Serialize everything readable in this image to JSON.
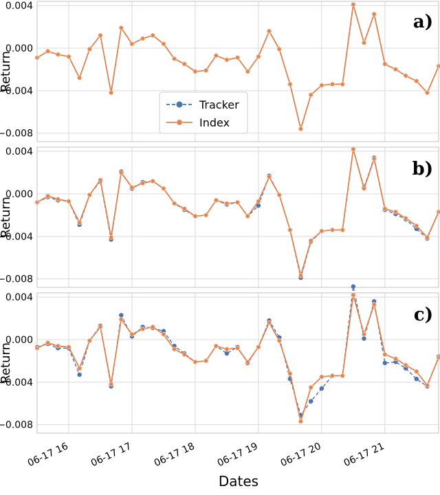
{
  "chart_data": {
    "type": "line",
    "xlabel": "Dates",
    "x_tick_labels": [
      "06-17 16",
      "06-17 17",
      "06-17 18",
      "06-17 19",
      "06-17 20",
      "06-17 21"
    ],
    "x_tick_hours": [
      16,
      17,
      18,
      19,
      20,
      21
    ],
    "xlim": [
      15.5,
      21.85
    ],
    "x": [
      15.5,
      15.67,
      15.83,
      16.0,
      16.17,
      16.33,
      16.5,
      16.67,
      16.83,
      17.0,
      17.17,
      17.33,
      17.5,
      17.67,
      17.83,
      18.0,
      18.17,
      18.33,
      18.5,
      18.67,
      18.83,
      19.0,
      19.17,
      19.33,
      19.5,
      19.67,
      19.83,
      20.0,
      20.17,
      20.33,
      20.5,
      20.67,
      20.83,
      21.0,
      21.17,
      21.33,
      21.5,
      21.67,
      21.85
    ],
    "y_ticks": [
      0.004,
      0.0,
      -0.004,
      -0.008
    ],
    "y_tick_labels": [
      "0.004",
      "0.000",
      "−0.004",
      "−0.008"
    ],
    "ylim": [
      -0.0088,
      0.0044
    ],
    "grid": true,
    "legend": {
      "position": "center-left",
      "entries": [
        "Tracker",
        "Index"
      ]
    },
    "colors": {
      "tracker": "#4c72b0",
      "index": "#dd8452",
      "grid": "#d9d9d9",
      "frame": "#c0c0c0"
    },
    "panels": [
      {
        "tag": "a)",
        "ylabel": "Return",
        "series": [
          {
            "name": "Tracker",
            "values": [
              -0.0009,
              -0.0003,
              -0.0006,
              -0.0008,
              -0.0028,
              -0.0001,
              0.0012,
              -0.0042,
              0.0019,
              0.0004,
              0.0009,
              0.0012,
              0.0004,
              -0.001,
              -0.0015,
              -0.0022,
              -0.0021,
              -0.0007,
              -0.0011,
              -0.0009,
              -0.0022,
              -0.0008,
              0.0016,
              -0.0001,
              -0.0034,
              -0.0076,
              -0.0044,
              -0.0035,
              -0.0034,
              -0.0034,
              0.0041,
              0.0005,
              0.0032,
              -0.0015,
              -0.002,
              -0.0026,
              -0.0031,
              -0.0042,
              -0.0017
            ]
          },
          {
            "name": "Index",
            "values": [
              -0.0009,
              -0.0003,
              -0.0006,
              -0.0008,
              -0.0028,
              -0.0001,
              0.0012,
              -0.0042,
              0.0019,
              0.0004,
              0.0009,
              0.0012,
              0.0004,
              -0.001,
              -0.0015,
              -0.0022,
              -0.0021,
              -0.0007,
              -0.0011,
              -0.0009,
              -0.0022,
              -0.0008,
              0.0016,
              -0.0001,
              -0.0034,
              -0.0076,
              -0.0044,
              -0.0035,
              -0.0034,
              -0.0034,
              0.0041,
              0.0005,
              0.0032,
              -0.0015,
              -0.002,
              -0.0026,
              -0.0031,
              -0.0042,
              -0.0017
            ]
          }
        ]
      },
      {
        "tag": "b)",
        "ylabel": "Return",
        "series": [
          {
            "name": "Tracker",
            "values": [
              -0.0008,
              -0.0003,
              -0.0006,
              -0.0007,
              -0.0029,
              -0.0001,
              0.0012,
              -0.0043,
              0.0021,
              0.0005,
              0.0011,
              0.0012,
              0.0005,
              -0.0009,
              -0.0015,
              -0.0021,
              -0.002,
              -0.0006,
              -0.001,
              -0.0008,
              -0.0021,
              -0.0011,
              0.0017,
              -0.0001,
              -0.0034,
              -0.0079,
              -0.0045,
              -0.0035,
              -0.0034,
              -0.0034,
              0.0042,
              0.0006,
              0.0034,
              -0.0015,
              -0.0019,
              -0.0024,
              -0.0033,
              -0.0042,
              -0.0017
            ]
          },
          {
            "name": "Index",
            "values": [
              -0.0008,
              -0.0002,
              -0.0005,
              -0.0007,
              -0.0027,
              -0.0001,
              0.0013,
              -0.0041,
              0.002,
              0.0006,
              0.001,
              0.0012,
              0.0005,
              -0.0009,
              -0.0014,
              -0.0021,
              -0.002,
              -0.0006,
              -0.0009,
              -0.0008,
              -0.0021,
              -0.0007,
              0.0016,
              -0.0001,
              -0.0034,
              -0.0077,
              -0.0044,
              -0.0035,
              -0.0034,
              -0.0034,
              0.0042,
              0.0005,
              0.0033,
              -0.0014,
              -0.0017,
              -0.0023,
              -0.003,
              -0.0041,
              -0.0017
            ]
          }
        ]
      },
      {
        "tag": "c)",
        "ylabel": "Return",
        "series": [
          {
            "name": "Tracker",
            "values": [
              -0.0007,
              -0.0004,
              -0.0008,
              -0.0008,
              -0.0033,
              -0.0001,
              0.0013,
              -0.0044,
              0.0023,
              0.0003,
              0.0012,
              0.0011,
              0.0008,
              -0.0006,
              -0.0013,
              -0.0021,
              -0.002,
              -0.0006,
              -0.0013,
              -0.0007,
              -0.0022,
              -0.0007,
              0.0018,
              0.0002,
              -0.0037,
              -0.0071,
              -0.0058,
              -0.0046,
              -0.0034,
              -0.0034,
              0.005,
              0.0001,
              0.0036,
              -0.0022,
              -0.0021,
              -0.0027,
              -0.0037,
              -0.0044,
              -0.0016
            ]
          },
          {
            "name": "Index",
            "values": [
              -0.0008,
              -0.0003,
              -0.0006,
              -0.0007,
              -0.0027,
              -0.0001,
              0.0012,
              -0.0042,
              0.0019,
              0.0005,
              0.001,
              0.0012,
              0.0005,
              -0.0009,
              -0.0014,
              -0.0021,
              -0.002,
              -0.0006,
              -0.0009,
              -0.0008,
              -0.0021,
              -0.0007,
              0.0016,
              -0.0001,
              -0.0032,
              -0.0077,
              -0.0045,
              -0.0035,
              -0.0034,
              -0.0034,
              0.0042,
              0.0005,
              0.0033,
              -0.0014,
              -0.0018,
              -0.0024,
              -0.003,
              -0.0043,
              -0.0017
            ]
          }
        ]
      }
    ]
  }
}
